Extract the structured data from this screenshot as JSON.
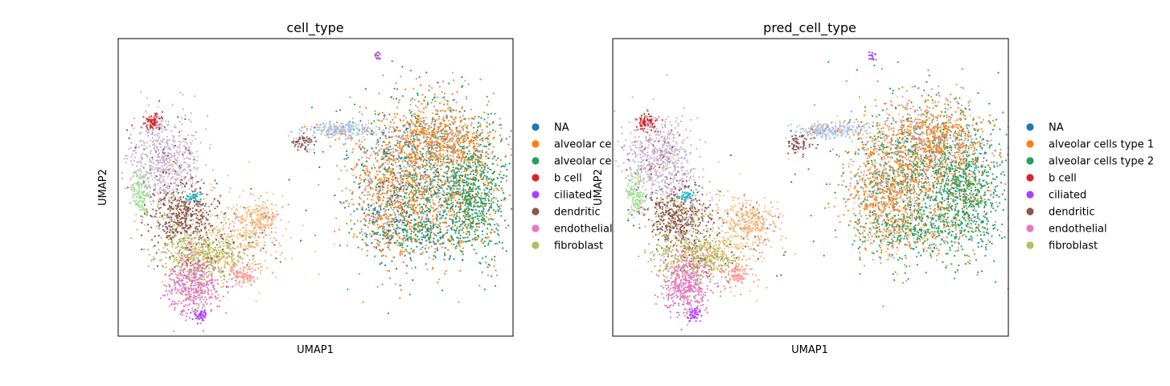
{
  "chart_data": [
    {
      "type": "scatter",
      "title": "cell_type",
      "xlabel": "UMAP1",
      "ylabel": "UMAP2",
      "grid": false,
      "legend_placement": "right-outside",
      "legend": [
        {
          "label": "NA",
          "color": "#1f77b4"
        },
        {
          "label": "alveolar ce",
          "color": "#ff7f0e"
        },
        {
          "label": "alveolar ce",
          "color": "#279e68"
        },
        {
          "label": "b cell",
          "color": "#d62728"
        },
        {
          "label": "ciliated",
          "color": "#aa40fc"
        },
        {
          "label": "dendritic",
          "color": "#8c564b"
        },
        {
          "label": "endothelial",
          "color": "#e377c2"
        },
        {
          "label": "fibroblast",
          "color": "#b5bd61"
        }
      ]
    },
    {
      "type": "scatter",
      "title": "pred_cell_type",
      "xlabel": "UMAP1",
      "ylabel": "UMAP2",
      "grid": false,
      "legend_placement": "right-outside",
      "legend": [
        {
          "label": "NA",
          "color": "#1f77b4"
        },
        {
          "label": "alveolar cells type 1",
          "color": "#ff7f0e"
        },
        {
          "label": "alveolar cells type 2",
          "color": "#279e68"
        },
        {
          "label": "b cell",
          "color": "#d62728"
        },
        {
          "label": "ciliated",
          "color": "#aa40fc"
        },
        {
          "label": "dendritic",
          "color": "#8c564b"
        },
        {
          "label": "endothelial",
          "color": "#e377c2"
        },
        {
          "label": "fibroblast",
          "color": "#b5bd61"
        }
      ]
    }
  ]
}
